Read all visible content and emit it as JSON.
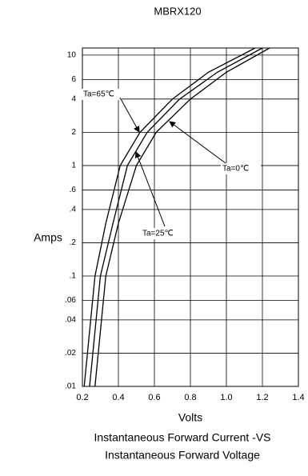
{
  "chart_data": {
    "type": "line",
    "title": "MBRX120",
    "xlabel": "Volts",
    "ylabel": "Amps",
    "caption": [
      "Instantaneous Forward Current -VS",
      "Instantaneous Forward Voltage"
    ],
    "log_y": true,
    "grid": true,
    "xlim": [
      0.2,
      1.4
    ],
    "ylim": [
      0.01,
      11.6
    ],
    "xticks": [
      0.2,
      0.4,
      0.6,
      0.8,
      {
        "value": 1,
        "label": "1.0"
      },
      1.2,
      1.4
    ],
    "yticks": [
      10,
      6,
      4,
      2,
      1,
      {
        "value": 0.6,
        "label": ".6"
      },
      {
        "value": 0.4,
        "label": ".4"
      },
      {
        "value": 0.2,
        "label": ".2"
      },
      {
        "value": 0.1,
        "label": ".1"
      },
      {
        "value": 0.06,
        "label": ".06"
      },
      {
        "value": 0.04,
        "label": ".04"
      },
      {
        "value": 0.02,
        "label": ".02"
      },
      {
        "value": 0.01,
        "label": ".01"
      }
    ],
    "series": [
      {
        "name": "Ta=65℃",
        "color": "#000000",
        "x": [
          0.21,
          0.27,
          0.33,
          0.41,
          0.52,
          0.7,
          0.9,
          1.16
        ],
        "values": [
          0.01,
          0.1,
          0.3,
          1,
          2,
          4,
          7,
          11.6
        ]
      },
      {
        "name": "Ta=25℃",
        "color": "#000000",
        "x": [
          0.24,
          0.3,
          0.37,
          0.45,
          0.56,
          0.74,
          0.95,
          1.2
        ],
        "values": [
          0.01,
          0.1,
          0.3,
          1,
          2,
          4,
          7,
          11.6
        ]
      },
      {
        "name": "Ta=0℃",
        "color": "#000000",
        "x": [
          0.27,
          0.33,
          0.4,
          0.5,
          0.61,
          0.8,
          1.0,
          1.24
        ],
        "values": [
          0.01,
          0.1,
          0.3,
          1,
          2,
          4,
          7,
          11.6
        ]
      }
    ]
  }
}
